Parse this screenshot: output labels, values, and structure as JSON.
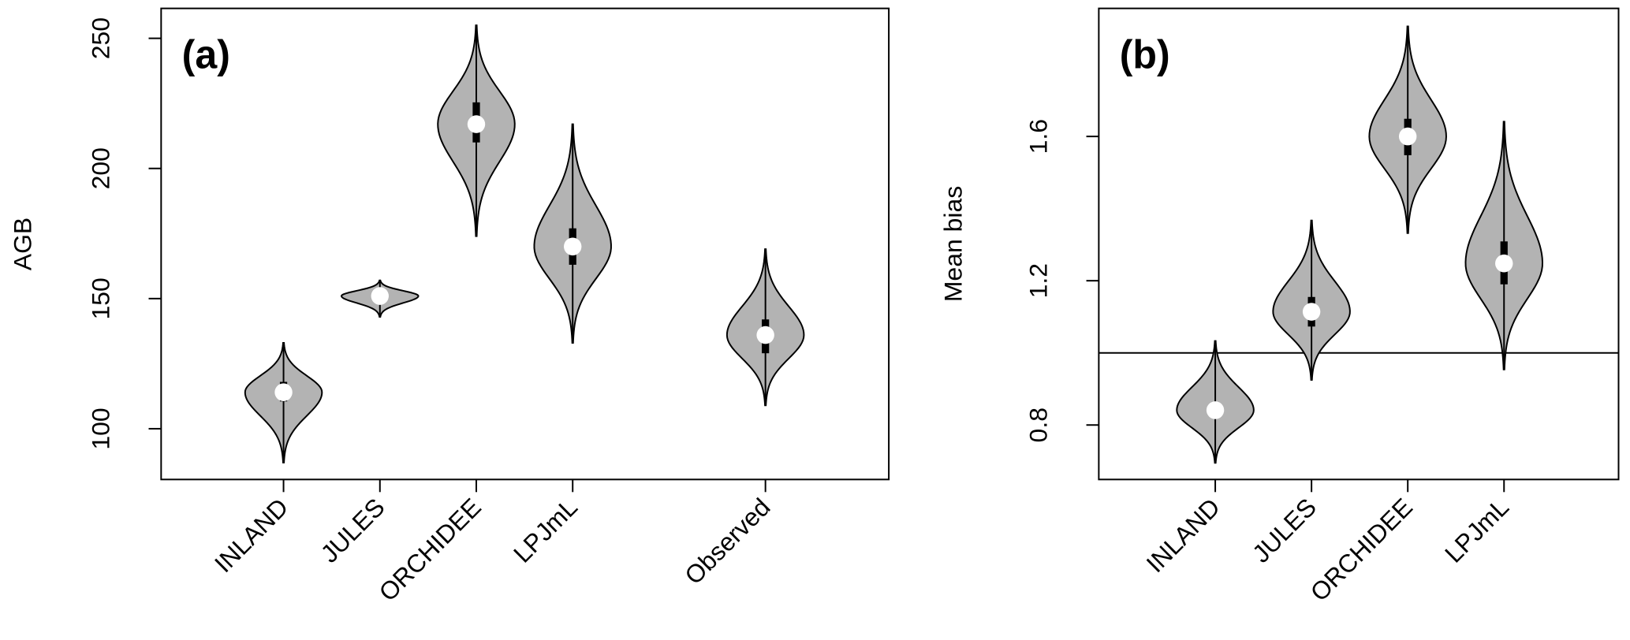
{
  "chart_data": [
    {
      "type": "violin",
      "title": "(a)",
      "ylabel": "AGB",
      "categories": [
        "INLAND",
        "JULES",
        "ORCHIDEE",
        "LPJmL",
        "Observed"
      ],
      "x": [
        1,
        2,
        3,
        4,
        6
      ],
      "xlim": [
        -0.27,
        7.28
      ],
      "ylim": [
        80.5,
        261.5
      ],
      "yticks": [
        100,
        150,
        200,
        250
      ],
      "min": [
        87,
        143,
        174,
        133,
        109
      ],
      "q1": [
        110.5,
        150,
        210,
        163,
        129
      ],
      "median": [
        114,
        151,
        217,
        170,
        136
      ],
      "q3": [
        118,
        152,
        225.4,
        177,
        142
      ],
      "max": [
        133,
        157,
        255,
        217,
        169
      ],
      "color": "#b3b3b3"
    },
    {
      "type": "violin",
      "title": "(b)",
      "ylabel": "Mean bias",
      "categories": [
        "INLAND",
        "JULES",
        "ORCHIDEE",
        "LPJmL"
      ],
      "x": [
        1,
        2,
        3,
        4
      ],
      "xlim": [
        -0.21,
        5.19
      ],
      "ylim": [
        0.649,
        1.955
      ],
      "yticks": [
        0.8,
        1.2,
        1.6
      ],
      "hline": 1,
      "min": [
        0.695,
        0.925,
        1.332,
        0.954
      ],
      "q1": [
        0.82,
        1.073,
        1.548,
        1.19
      ],
      "median": [
        0.841,
        1.114,
        1.6,
        1.248
      ],
      "q3": [
        0.864,
        1.155,
        1.649,
        1.309
      ],
      "max": [
        1.033,
        1.367,
        1.905,
        1.641
      ],
      "color": "#b3b3b3"
    }
  ]
}
